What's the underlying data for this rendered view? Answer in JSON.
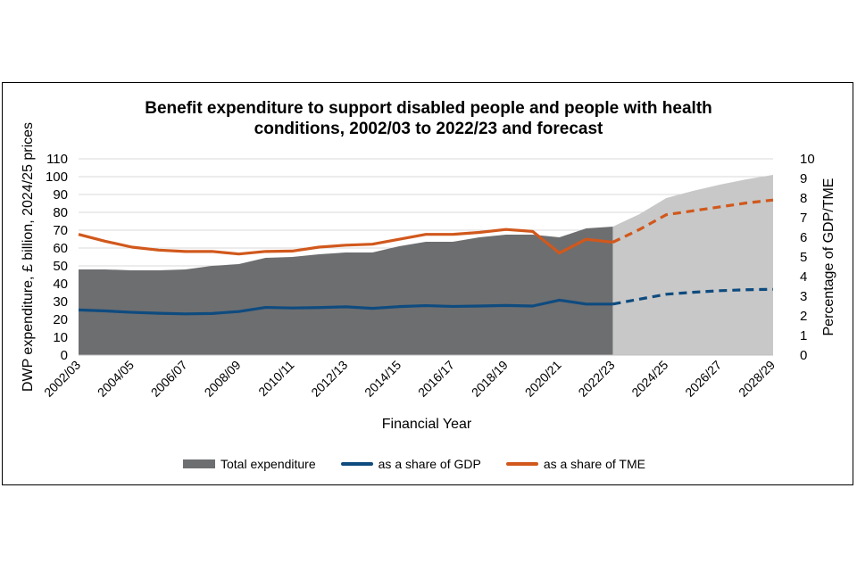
{
  "chart_data": {
    "type": "area",
    "title_lines": [
      "Benefit expenditure to support disabled people and people with health",
      "conditions, 2002/03 to 2022/23 and forecast"
    ],
    "xlabel": "Financial Year",
    "ylabel": "DWP expenditure, £ billion, 2024/25 prices",
    "y2label": "Percentage of GDP/TME",
    "ylim": [
      0,
      110
    ],
    "y2lim": [
      0,
      10
    ],
    "yticks": [
      0,
      10,
      20,
      30,
      40,
      50,
      60,
      70,
      80,
      90,
      100,
      110
    ],
    "y2ticks": [
      0,
      1,
      2,
      3,
      4,
      5,
      6,
      7,
      8,
      9,
      10
    ],
    "grid": true,
    "legend_position": "bottom",
    "x": [
      "2002/03",
      "2003/04",
      "2004/05",
      "2005/06",
      "2006/07",
      "2007/08",
      "2008/09",
      "2009/10",
      "2010/11",
      "2011/12",
      "2012/13",
      "2013/14",
      "2014/15",
      "2015/16",
      "2016/17",
      "2017/18",
      "2018/19",
      "2019/20",
      "2020/21",
      "2021/22",
      "2022/23",
      "2023/24",
      "2024/25",
      "2025/26",
      "2026/27",
      "2027/28",
      "2028/29"
    ],
    "xtick_labels": [
      "2002/03",
      "2004/05",
      "2006/07",
      "2008/09",
      "2010/11",
      "2012/13",
      "2014/15",
      "2016/17",
      "2018/19",
      "2020/21",
      "2022/23",
      "2024/25",
      "2026/27",
      "2028/29"
    ],
    "forecast_start": "2022/23",
    "series": [
      {
        "name": "Total expenditure",
        "kind": "area",
        "color": "#6d6e70",
        "forecast_color": "#c8c8c8",
        "values": [
          48,
          48,
          47.5,
          47.5,
          48,
          50,
          51,
          54.5,
          55,
          56.5,
          57.5,
          57.5,
          61,
          63.5,
          63.5,
          66,
          67.5,
          67.5,
          66,
          71,
          72,
          79,
          88,
          92,
          95.5,
          98.5,
          101
        ]
      },
      {
        "name": "as a share of GDP",
        "kind": "line",
        "axis": "right",
        "color": "#0e4b7f",
        "values": [
          2.3,
          2.25,
          2.18,
          2.13,
          2.1,
          2.12,
          2.22,
          2.43,
          2.4,
          2.42,
          2.46,
          2.38,
          2.47,
          2.52,
          2.48,
          2.5,
          2.53,
          2.5,
          2.8,
          2.6,
          2.6,
          2.85,
          3.1,
          3.2,
          3.28,
          3.33,
          3.35
        ]
      },
      {
        "name": "as a share of TME",
        "kind": "line",
        "axis": "right",
        "color": "#d1581c",
        "values": [
          6.15,
          5.8,
          5.5,
          5.35,
          5.28,
          5.28,
          5.15,
          5.28,
          5.3,
          5.5,
          5.6,
          5.65,
          5.9,
          6.15,
          6.15,
          6.25,
          6.4,
          6.3,
          5.2,
          5.9,
          5.75,
          6.4,
          7.15,
          7.35,
          7.55,
          7.75,
          7.9
        ]
      }
    ]
  }
}
